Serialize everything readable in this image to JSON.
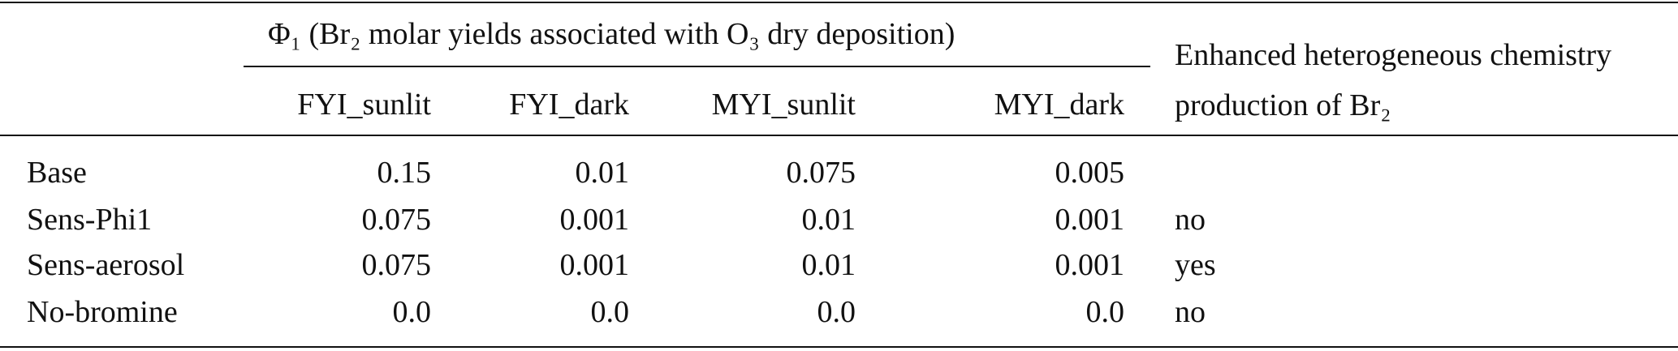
{
  "table": {
    "group_header": "Φ₁ (Br₂ molar yields associated with O₃ dry deposition)",
    "columns": [
      "FYI_sunlit",
      "FYI_dark",
      "MYI_sunlit",
      "MYI_dark"
    ],
    "last_header": "Enhanced heterogeneous chemistry production of Br₂",
    "rows": [
      {
        "label": "Base",
        "values": [
          "0.15",
          "0.01",
          "0.075",
          "0.005"
        ]
      },
      {
        "label": "Sens-Phi1",
        "values": [
          "0.075",
          "0.001",
          "0.01",
          "0.001"
        ],
        "enhanced": "no"
      },
      {
        "label": "Sens-aerosol",
        "values": [
          "0.075",
          "0.001",
          "0.01",
          "0.001"
        ],
        "enhanced": "yes"
      },
      {
        "label": "No-bromine",
        "values": [
          "0.0",
          "0.0",
          "0.0",
          "0.0"
        ],
        "enhanced": "no"
      }
    ]
  }
}
